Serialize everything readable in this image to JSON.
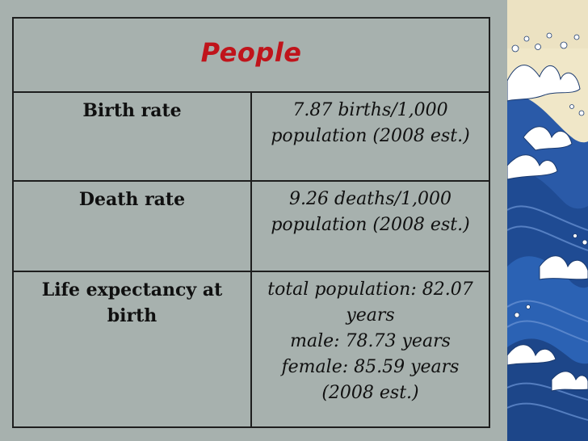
{
  "slide": {
    "title": "People",
    "colors": {
      "background": "#a7b1ae",
      "title": "#c0141b",
      "border": "#1e1e1e"
    },
    "rows": [
      {
        "label": "Birth rate",
        "value_lines": [
          "7.87 births/1,000",
          "population (2008 est.)"
        ]
      },
      {
        "label": "Death rate",
        "value_lines": [
          "9.26 deaths/1,000",
          "population (2008 est.)"
        ]
      },
      {
        "label": "Life expectancy at birth",
        "value_lines": [
          "total population: 82.07 years",
          "male: 78.73 years",
          "female: 85.59 years",
          "(2008 est.)"
        ]
      }
    ],
    "decoration": {
      "image": "great-wave-artwork"
    }
  }
}
